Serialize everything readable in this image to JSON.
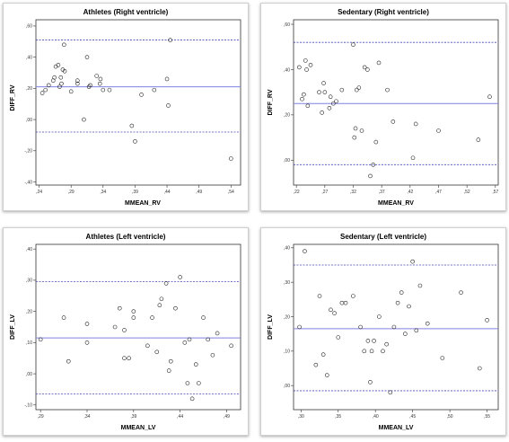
{
  "colors": {
    "mean_line": "#8080e0",
    "limit_line": "#4a4ab8",
    "point_stroke": "#222222",
    "axis": "#333333"
  },
  "chart_data": [
    {
      "type": "scatter",
      "title": "Athletes (Right ventricle)",
      "xlabel": "MMEAN_RV",
      "ylabel": "DIFF_RV",
      "xlim": [
        0.235,
        0.555
      ],
      "ylim": [
        -0.42,
        0.64
      ],
      "xticks": [
        0.24,
        0.29,
        0.34,
        0.39,
        0.44,
        0.49,
        0.54
      ],
      "xtick_labels": [
        ",24",
        ",29",
        ",34",
        ",39",
        ",44",
        ",49",
        ",54"
      ],
      "yticks": [
        -0.4,
        -0.2,
        0.0,
        0.2,
        0.4,
        0.6
      ],
      "ytick_labels": [
        "-,40",
        "-,20",
        ",00",
        ",20",
        ",40",
        ",60"
      ],
      "mean": 0.21,
      "upper_loa": 0.51,
      "lower_loa": -0.08,
      "x": [
        0.245,
        0.25,
        0.255,
        0.262,
        0.264,
        0.266,
        0.27,
        0.272,
        0.274,
        0.275,
        0.277,
        0.279,
        0.28,
        0.29,
        0.3,
        0.3,
        0.31,
        0.315,
        0.318,
        0.32,
        0.33,
        0.335,
        0.336,
        0.34,
        0.35,
        0.385,
        0.39,
        0.4,
        0.42,
        0.44,
        0.442,
        0.445,
        0.54
      ],
      "y": [
        0.17,
        0.19,
        0.22,
        0.25,
        0.27,
        0.34,
        0.35,
        0.21,
        0.27,
        0.23,
        0.32,
        0.48,
        0.31,
        0.18,
        0.23,
        0.25,
        0.0,
        0.4,
        0.21,
        0.22,
        0.28,
        0.23,
        0.26,
        0.19,
        0.19,
        -0.04,
        -0.14,
        0.16,
        0.19,
        0.26,
        0.09,
        0.51,
        -0.25
      ]
    },
    {
      "type": "scatter",
      "title": "Sedentary (Right ventricle)",
      "xlabel": "MMEAN_RV",
      "ylabel": "DIFF_RV",
      "xlim": [
        0.215,
        0.575
      ],
      "ylim": [
        -0.11,
        0.62
      ],
      "xticks": [
        0.22,
        0.27,
        0.32,
        0.37,
        0.42,
        0.47,
        0.52,
        0.57
      ],
      "xtick_labels": [
        ",22",
        ",27",
        ",32",
        ",37",
        ",42",
        ",47",
        ",52",
        ",57"
      ],
      "yticks": [
        0.0,
        0.2,
        0.4,
        0.6
      ],
      "ytick_labels": [
        ",00",
        ",20",
        ",40",
        ",60"
      ],
      "mean": 0.25,
      "upper_loa": 0.52,
      "lower_loa": -0.02,
      "x": [
        0.225,
        0.23,
        0.233,
        0.236,
        0.238,
        0.24,
        0.245,
        0.26,
        0.265,
        0.268,
        0.27,
        0.278,
        0.28,
        0.285,
        0.29,
        0.3,
        0.32,
        0.322,
        0.324,
        0.326,
        0.33,
        0.335,
        0.34,
        0.345,
        0.35,
        0.355,
        0.36,
        0.365,
        0.38,
        0.39,
        0.425,
        0.43,
        0.47,
        0.54,
        0.56
      ],
      "y": [
        0.41,
        0.27,
        0.29,
        0.44,
        0.4,
        0.24,
        0.42,
        0.3,
        0.21,
        0.34,
        0.3,
        0.23,
        0.28,
        0.25,
        0.26,
        0.31,
        0.51,
        0.1,
        0.14,
        0.31,
        0.32,
        0.13,
        0.41,
        0.4,
        -0.07,
        -0.02,
        0.08,
        0.43,
        0.31,
        0.17,
        0.01,
        0.16,
        0.13,
        0.09,
        0.28
      ]
    },
    {
      "type": "scatter",
      "title": "Athletes (Left ventricle)",
      "xlabel": "MMEAN_LV",
      "ylabel": "DIFF_LV",
      "xlim": [
        0.285,
        0.505
      ],
      "ylim": [
        -0.115,
        0.415
      ],
      "xticks": [
        0.29,
        0.34,
        0.39,
        0.44,
        0.49
      ],
      "xtick_labels": [
        ",29",
        ",34",
        ",39",
        ",44",
        ",49"
      ],
      "yticks": [
        -0.1,
        0.0,
        0.1,
        0.2,
        0.3,
        0.4
      ],
      "ytick_labels": [
        "-,10",
        ",00",
        ",10",
        ",20",
        ",30",
        ",40"
      ],
      "mean": 0.115,
      "upper_loa": 0.295,
      "lower_loa": -0.065,
      "x": [
        0.29,
        0.315,
        0.32,
        0.34,
        0.34,
        0.37,
        0.375,
        0.38,
        0.38,
        0.385,
        0.39,
        0.39,
        0.405,
        0.41,
        0.415,
        0.418,
        0.42,
        0.425,
        0.428,
        0.43,
        0.435,
        0.44,
        0.445,
        0.448,
        0.45,
        0.453,
        0.457,
        0.46,
        0.465,
        0.47,
        0.475,
        0.48,
        0.495
      ],
      "y": [
        0.11,
        0.18,
        0.04,
        0.16,
        0.1,
        0.15,
        0.21,
        0.05,
        0.14,
        0.05,
        0.18,
        0.2,
        0.09,
        0.18,
        0.07,
        0.22,
        0.24,
        0.29,
        0.01,
        0.04,
        0.21,
        0.31,
        0.1,
        -0.03,
        0.11,
        -0.08,
        0.03,
        -0.03,
        0.18,
        0.11,
        0.06,
        0.13,
        0.09
      ]
    },
    {
      "type": "scatter",
      "title": "Sedentary (Left ventricle)",
      "xlabel": "MMEAN_LV",
      "ylabel": "DIFF_LV",
      "xlim": [
        0.29,
        0.565
      ],
      "ylim": [
        -0.07,
        0.41
      ],
      "xticks": [
        0.3,
        0.35,
        0.4,
        0.45,
        0.5,
        0.55
      ],
      "xtick_labels": [
        ",30",
        ",35",
        ",40",
        ",45",
        ",50",
        ",55"
      ],
      "yticks": [
        0.0,
        0.1,
        0.2,
        0.3,
        0.4
      ],
      "ytick_labels": [
        ",00",
        ",10",
        ",20",
        ",30",
        ",40"
      ],
      "mean": 0.165,
      "upper_loa": 0.35,
      "lower_loa": -0.015,
      "x": [
        0.298,
        0.305,
        0.32,
        0.325,
        0.33,
        0.335,
        0.34,
        0.345,
        0.35,
        0.355,
        0.36,
        0.37,
        0.38,
        0.385,
        0.39,
        0.393,
        0.395,
        0.398,
        0.405,
        0.41,
        0.415,
        0.42,
        0.425,
        0.43,
        0.435,
        0.44,
        0.445,
        0.45,
        0.455,
        0.46,
        0.47,
        0.49,
        0.515,
        0.54,
        0.55
      ],
      "y": [
        0.17,
        0.39,
        0.06,
        0.26,
        0.09,
        0.03,
        0.22,
        0.21,
        0.14,
        0.24,
        0.24,
        0.26,
        0.17,
        0.1,
        0.13,
        0.01,
        0.1,
        0.13,
        0.2,
        0.1,
        0.12,
        -0.02,
        0.17,
        0.24,
        0.27,
        0.15,
        0.23,
        0.36,
        0.16,
        0.29,
        0.18,
        0.08,
        0.27,
        0.05,
        0.19
      ]
    }
  ]
}
